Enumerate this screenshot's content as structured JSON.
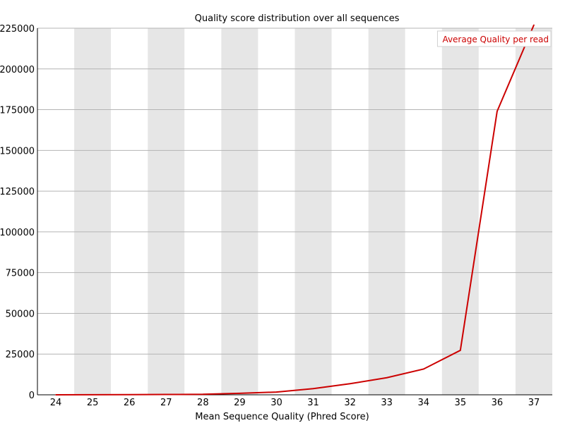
{
  "chart_data": {
    "type": "line",
    "title": "Quality score distribution over all sequences",
    "xlabel": "Mean Sequence Quality (Phred Score)",
    "ylabel": "",
    "categories": [
      24,
      25,
      26,
      27,
      28,
      29,
      30,
      31,
      32,
      33,
      34,
      35,
      36,
      37
    ],
    "ylim": [
      0,
      225000
    ],
    "yticks": [
      0,
      25000,
      50000,
      75000,
      100000,
      125000,
      150000,
      175000,
      200000,
      225000
    ],
    "series": [
      {
        "name": "Average Quality per read",
        "color": "#cc0000",
        "values": [
          20,
          50,
          100,
          200,
          300,
          900,
          1700,
          3800,
          6800,
          10500,
          15800,
          27300,
          174000,
          227000
        ]
      }
    ],
    "band_colors": [
      "#ffffff",
      "#e6e6e6"
    ],
    "grid": "horizontal",
    "legend_position": "top-right"
  }
}
